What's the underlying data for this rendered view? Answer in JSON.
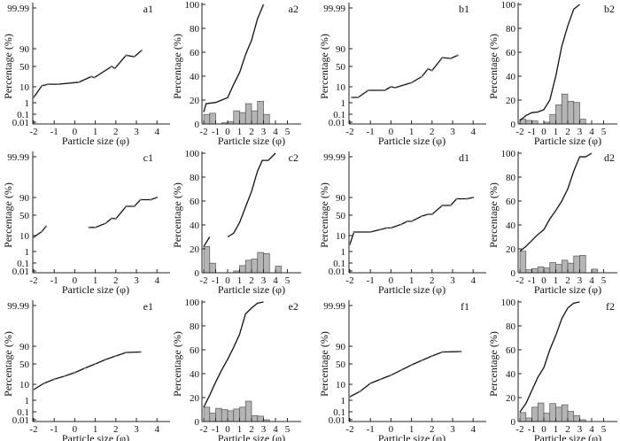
{
  "chart_data": {
    "axes": {
      "prob_ylabel": "Percentage (%)",
      "freq_ylabel": "Percentage (%)",
      "xlabel": "Particle size (φ)",
      "prob_y_ticks": [
        "99.99",
        "90",
        "50",
        "10",
        "1",
        "0.1",
        "0.01"
      ],
      "prob_y_tick_values": [
        99.99,
        90,
        50,
        10,
        1,
        0.1,
        0.01
      ],
      "prob_x_ticks": [
        "-2",
        "-1",
        "0",
        "1",
        "2",
        "3",
        "4"
      ],
      "freq_y_ticks": [
        "0",
        "20",
        "40",
        "60",
        "80",
        "100"
      ],
      "freq_x_ticks": [
        "-2",
        "-1",
        "0",
        "1",
        "2",
        "3",
        "4",
        "5"
      ],
      "prob_xlim": [
        -2,
        4
      ],
      "freq_xlim": [
        -2,
        5
      ],
      "freq_ylim": [
        0,
        100
      ],
      "grid": false,
      "bin_width": 0.5
    },
    "panels": [
      {
        "label": "a1",
        "type": "line",
        "scale": "probability",
        "segments": [
          [
            [
              -2,
              4
            ],
            [
              -1.6,
              12
            ],
            [
              -1.3,
              15
            ],
            [
              -0.8,
              15
            ],
            [
              0.2,
              19
            ],
            [
              0.8,
              30
            ],
            [
              0.95,
              28
            ],
            [
              1.8,
              50
            ],
            [
              1.95,
              46
            ],
            [
              2.5,
              75
            ],
            [
              2.9,
              72
            ],
            [
              3.25,
              86
            ]
          ]
        ]
      },
      {
        "label": "a2",
        "type": "bar+line",
        "bins": [
          -2,
          -1.5,
          -1,
          -0.5,
          0,
          0.5,
          1,
          1.5,
          2,
          2.5,
          3
        ],
        "freq": [
          8,
          9,
          0,
          1,
          2,
          11,
          9.5,
          17,
          11,
          19,
          8
        ],
        "cumulative": [
          [
            [
              -2,
              10
            ],
            [
              -1.8,
              17
            ],
            [
              -1,
              18
            ],
            [
              -0.5,
              20
            ],
            [
              0,
              22
            ],
            [
              0.5,
              33
            ],
            [
              1,
              43
            ],
            [
              1.5,
              58
            ],
            [
              2,
              70
            ],
            [
              2.5,
              88
            ],
            [
              3,
              100
            ]
          ]
        ]
      },
      {
        "label": "b1",
        "type": "line",
        "scale": "probability",
        "segments": [
          [
            [
              -1.9,
              4
            ],
            [
              -1.6,
              4
            ],
            [
              -1.1,
              8
            ],
            [
              -0.3,
              8
            ],
            [
              0,
              10
            ],
            [
              0.2,
              9.5
            ],
            [
              1,
              18
            ],
            [
              1.5,
              30
            ],
            [
              1.8,
              45
            ],
            [
              2,
              42
            ],
            [
              2.5,
              70
            ],
            [
              2.9,
              68
            ],
            [
              3.25,
              75
            ]
          ]
        ]
      },
      {
        "label": "b2",
        "type": "bar+line",
        "bins": [
          -2,
          -1.5,
          -1,
          -0.5,
          0,
          0.5,
          1,
          1.5,
          2,
          2.5,
          3
        ],
        "freq": [
          4,
          3,
          2.5,
          0,
          1.5,
          8,
          16,
          25,
          19,
          18,
          4
        ],
        "cumulative": [
          [
            [
              -2,
              3
            ],
            [
              -1.5,
              7
            ],
            [
              -1,
              9.5
            ],
            [
              -0.5,
              10
            ],
            [
              0,
              12
            ],
            [
              0.5,
              20
            ],
            [
              1,
              40
            ],
            [
              1.5,
              65
            ],
            [
              2,
              82
            ],
            [
              2.5,
              96
            ],
            [
              3,
              100
            ]
          ]
        ]
      },
      {
        "label": "c1",
        "type": "line",
        "scale": "probability",
        "segments": [
          [
            [
              -2,
              9
            ],
            [
              -1.6,
              18
            ],
            [
              -1.4,
              28
            ]
          ],
          [
            [
              0.7,
              26
            ],
            [
              1,
              26
            ],
            [
              1.5,
              34
            ],
            [
              1.8,
              44
            ],
            [
              2,
              43
            ],
            [
              2.5,
              70
            ],
            [
              2.9,
              70
            ],
            [
              3.2,
              85
            ],
            [
              3.7,
              85
            ],
            [
              4,
              90
            ]
          ]
        ]
      },
      {
        "label": "c2",
        "type": "bar+line",
        "bins": [
          -2,
          -1.5,
          -1,
          -0.5,
          0,
          0.5,
          1,
          1.5,
          2,
          2.5,
          3,
          3.5,
          4
        ],
        "freq": [
          22,
          8,
          0,
          0,
          0,
          1.5,
          6,
          10.5,
          11.5,
          17,
          16,
          0,
          5.5
        ],
        "cumulative": [
          [
            [
              -2,
              22
            ],
            [
              -1.5,
              30
            ]
          ],
          [
            [
              0,
              30
            ],
            [
              0.5,
              33
            ],
            [
              1,
              42
            ],
            [
              1.5,
              55
            ],
            [
              2,
              68
            ],
            [
              2.5,
              85
            ],
            [
              2.9,
              94
            ],
            [
              3.4,
              94
            ],
            [
              4,
              100
            ]
          ]
        ]
      },
      {
        "label": "d1",
        "type": "line",
        "scale": "probability",
        "segments": [
          [
            [
              -2,
              5
            ],
            [
              -1.8,
              17
            ],
            [
              -1,
              17
            ],
            [
              -0.5,
              22
            ],
            [
              -0.2,
              25
            ],
            [
              0,
              25
            ],
            [
              0.5,
              32
            ],
            [
              0.8,
              38
            ],
            [
              1,
              38
            ],
            [
              1.5,
              48
            ],
            [
              1.8,
              52
            ],
            [
              2,
              52
            ],
            [
              2.5,
              72
            ],
            [
              2.9,
              72
            ],
            [
              3.2,
              87
            ],
            [
              3.7,
              87
            ],
            [
              4,
              90
            ]
          ]
        ]
      },
      {
        "label": "d2",
        "type": "bar+line",
        "bins": [
          -2,
          -1.5,
          -1,
          -0.5,
          0,
          0.5,
          1,
          1.5,
          2,
          2.5,
          3,
          3.5,
          4
        ],
        "freq": [
          18,
          2.5,
          3.5,
          5,
          4,
          8.5,
          7,
          10.5,
          8,
          14,
          14.5,
          0,
          3
        ],
        "cumulative": [
          [
            [
              -2,
              18
            ],
            [
              -1.5,
              22
            ],
            [
              -1,
              27
            ],
            [
              -0.5,
              32
            ],
            [
              0,
              36
            ],
            [
              0.5,
              45
            ],
            [
              1,
              52
            ],
            [
              1.5,
              60
            ],
            [
              2,
              70
            ],
            [
              2.5,
              85
            ],
            [
              3,
              97
            ],
            [
              3.5,
              97
            ],
            [
              4,
              100
            ]
          ]
        ]
      },
      {
        "label": "e1",
        "type": "line",
        "scale": "probability",
        "segments": [
          [
            [
              -2,
              7
            ],
            [
              -1.5,
              12
            ],
            [
              -1,
              20
            ],
            [
              -0.5,
              26
            ],
            [
              0,
              33
            ],
            [
              0.5,
              42
            ],
            [
              1,
              50
            ],
            [
              1.5,
              60
            ],
            [
              2,
              68
            ],
            [
              2.5,
              76
            ],
            [
              3.2,
              77
            ]
          ]
        ]
      },
      {
        "label": "e2",
        "type": "bar+line",
        "bins": [
          -2,
          -1.5,
          -1,
          -0.5,
          0,
          0.5,
          1,
          1.5,
          2,
          2.5,
          3
        ],
        "freq": [
          12,
          7,
          11,
          10,
          9,
          10.5,
          12,
          17,
          5,
          4.5,
          1.5
        ],
        "cumulative": [
          [
            [
              -2,
              12
            ],
            [
              -1.5,
              22
            ],
            [
              -1,
              33
            ],
            [
              -0.5,
              43
            ],
            [
              0,
              52
            ],
            [
              0.5,
              62
            ],
            [
              1,
              73
            ],
            [
              1.5,
              90
            ],
            [
              2,
              95
            ],
            [
              2.5,
              99
            ],
            [
              3,
              100
            ]
          ]
        ]
      },
      {
        "label": "f1",
        "type": "line",
        "scale": "probability",
        "segments": [
          [
            [
              -2,
              3
            ],
            [
              -1.5,
              6
            ],
            [
              -1,
              12
            ],
            [
              -0.5,
              20
            ],
            [
              0,
              28
            ],
            [
              0.5,
              38
            ],
            [
              1,
              48
            ],
            [
              1.5,
              58
            ],
            [
              2,
              68
            ],
            [
              2.5,
              77
            ],
            [
              3.4,
              78
            ]
          ]
        ]
      },
      {
        "label": "f2",
        "type": "bar+line",
        "bins": [
          -2,
          -1.5,
          -1,
          -0.5,
          0,
          0.5,
          1,
          1.5,
          2,
          2.5,
          3
        ],
        "freq": [
          7.5,
          3,
          12,
          15.5,
          7,
          15,
          12,
          14,
          8.5,
          5,
          1.5
        ],
        "cumulative": [
          [
            [
              -2,
              8
            ],
            [
              -1.5,
              15
            ],
            [
              -1,
              26
            ],
            [
              -0.5,
              37
            ],
            [
              0,
              45
            ],
            [
              0.5,
              60
            ],
            [
              1,
              72
            ],
            [
              1.5,
              86
            ],
            [
              2,
              95
            ],
            [
              2.5,
              99
            ],
            [
              3,
              100
            ]
          ]
        ]
      }
    ]
  }
}
